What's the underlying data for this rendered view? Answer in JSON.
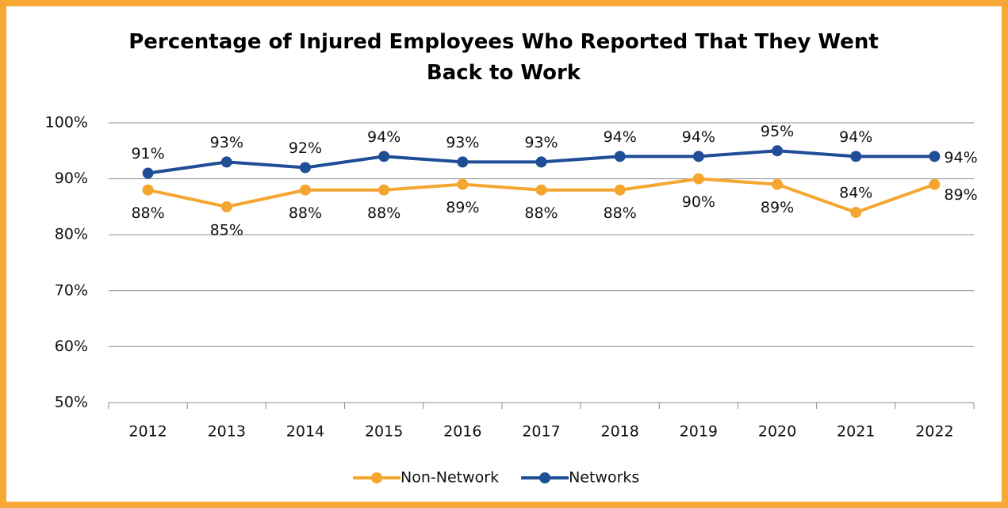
{
  "chart_data": {
    "type": "line",
    "title": "Percentage of Injured Employees Who Reported That They Went Back to Work",
    "categories": [
      "2012",
      "2013",
      "2014",
      "2015",
      "2016",
      "2017",
      "2018",
      "2019",
      "2020",
      "2021",
      "2022"
    ],
    "series": [
      {
        "name": "Non-Network",
        "color": "#f5a631",
        "values": [
          88,
          85,
          88,
          88,
          89,
          88,
          88,
          90,
          89,
          84,
          89
        ],
        "value_labels": [
          "88%",
          "85%",
          "88%",
          "88%",
          "89%",
          "88%",
          "88%",
          "90%",
          "89%",
          "84%",
          "89%"
        ]
      },
      {
        "name": "Networks",
        "color": "#1f4e96",
        "values": [
          91,
          93,
          92,
          94,
          93,
          93,
          94,
          94,
          95,
          94,
          94
        ],
        "value_labels": [
          "91%",
          "93%",
          "92%",
          "94%",
          "93%",
          "93%",
          "94%",
          "94%",
          "95%",
          "94%",
          "94%"
        ]
      }
    ],
    "ylim": [
      50,
      100
    ],
    "yticks": [
      {
        "value": 50,
        "label": "50%"
      },
      {
        "value": 60,
        "label": "60%"
      },
      {
        "value": 70,
        "label": "70%"
      },
      {
        "value": 80,
        "label": "80%"
      },
      {
        "value": 90,
        "label": "90%"
      },
      {
        "value": 100,
        "label": "100%"
      }
    ],
    "grid": true,
    "legend": "bottom"
  }
}
